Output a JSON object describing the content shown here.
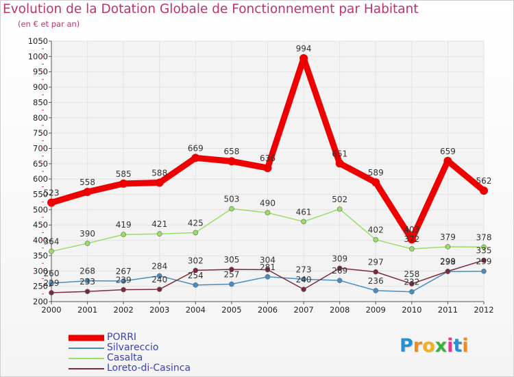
{
  "chart_data": {
    "type": "line",
    "title": "Evolution de la Dotation Globale de Fonctionnement par Habitant",
    "subtitle": "(en € et par an)",
    "categories": [
      "2000",
      "2001",
      "2002",
      "2003",
      "2004",
      "2005",
      "2006",
      "2007",
      "2008",
      "2009",
      "2010",
      "2011",
      "2012"
    ],
    "ylim": [
      200,
      1050
    ],
    "yticks": [
      200,
      250,
      300,
      350,
      400,
      450,
      500,
      550,
      600,
      650,
      700,
      750,
      800,
      850,
      900,
      950,
      1000,
      1050
    ],
    "series": [
      {
        "name": "PORRI",
        "color": "#ee0000",
        "values": [
          523,
          558,
          585,
          588,
          669,
          658,
          636,
          994,
          651,
          589,
          403,
          659,
          562
        ],
        "labels": [
          "523",
          "558",
          "585",
          "588",
          "669",
          "658",
          "636",
          "994",
          "651",
          "589",
          "403",
          "659",
          "562"
        ]
      },
      {
        "name": "Silvareccio",
        "color": "#4a8cc0",
        "values": [
          260,
          268,
          267,
          284,
          254,
          257,
          281,
          273,
          269,
          236,
          232,
          298,
          299
        ],
        "labels": [
          "260",
          "268",
          "267",
          "284",
          "254",
          "257",
          "281",
          "273",
          "269",
          "236",
          "232",
          "298",
          "299"
        ]
      },
      {
        "name": "Casalta",
        "color": "#99dd66",
        "values": [
          364,
          390,
          419,
          421,
          425,
          503,
          490,
          461,
          502,
          402,
          372,
          379,
          378
        ],
        "labels": [
          "364",
          "390",
          "419",
          "421",
          "425",
          "503",
          "490",
          "461",
          "502",
          "402",
          "372",
          "379",
          "378"
        ]
      },
      {
        "name": "Loreto-di-Casinca",
        "color": "#7a2a3a",
        "values": [
          229,
          233,
          239,
          240,
          302,
          305,
          304,
          240,
          309,
          297,
          258,
          299,
          335
        ],
        "labels": [
          "229",
          "233",
          "239",
          "240",
          "302",
          "305",
          "304",
          "240",
          "309",
          "297",
          "258",
          "299",
          "335"
        ]
      }
    ]
  },
  "legend": {
    "items": [
      {
        "label": "PORRI",
        "color": "#ee0000"
      },
      {
        "label": "Silvareccio",
        "color": "#4a8cc0"
      },
      {
        "label": "Casalta",
        "color": "#99dd66"
      },
      {
        "label": "Loreto-di-Casinca",
        "color": "#7a2a3a"
      }
    ]
  },
  "logo": {
    "letters": [
      "P",
      "r",
      "o",
      "x",
      "i",
      "t",
      "i"
    ],
    "colors": [
      "#2a8fd0",
      "#f08a1c",
      "#f0b020",
      "#3bb03b",
      "#e03a8c",
      "#2a8fd0",
      "#f08a1c"
    ]
  }
}
